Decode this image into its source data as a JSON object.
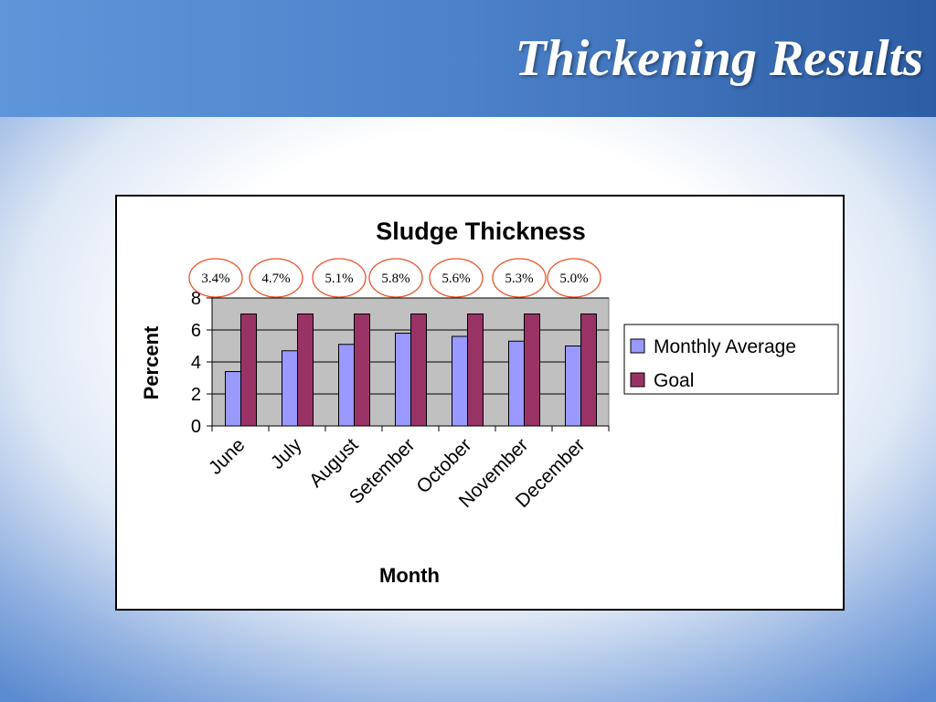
{
  "slide": {
    "title": "Thickening Results",
    "banner_colors": [
      "#5f95d9",
      "#2d5da5"
    ]
  },
  "chart_data": {
    "type": "bar",
    "title": "Sludge Thickness",
    "xlabel": "Month",
    "ylabel": "Percent",
    "categories": [
      "June",
      "July",
      "August",
      "Setember",
      "October",
      "November",
      "December"
    ],
    "series": [
      {
        "name": "Monthly Average",
        "values": [
          3.4,
          4.7,
          5.1,
          5.8,
          5.6,
          5.3,
          5.0
        ],
        "color": "#9999ff"
      },
      {
        "name": "Goal",
        "values": [
          7,
          7,
          7,
          7,
          7,
          7,
          7
        ],
        "color": "#993366"
      }
    ],
    "annotations": [
      "3.4%",
      "4.7%",
      "5.1%",
      "5.8%",
      "5.6%",
      "5.3%",
      "5.0%"
    ],
    "annotation_color": "#e8552b",
    "ylim": [
      0,
      8
    ],
    "yticks": [
      0,
      2,
      4,
      6,
      8
    ],
    "grid": true,
    "plot_background": "#c0c0c0",
    "legend": "right"
  }
}
